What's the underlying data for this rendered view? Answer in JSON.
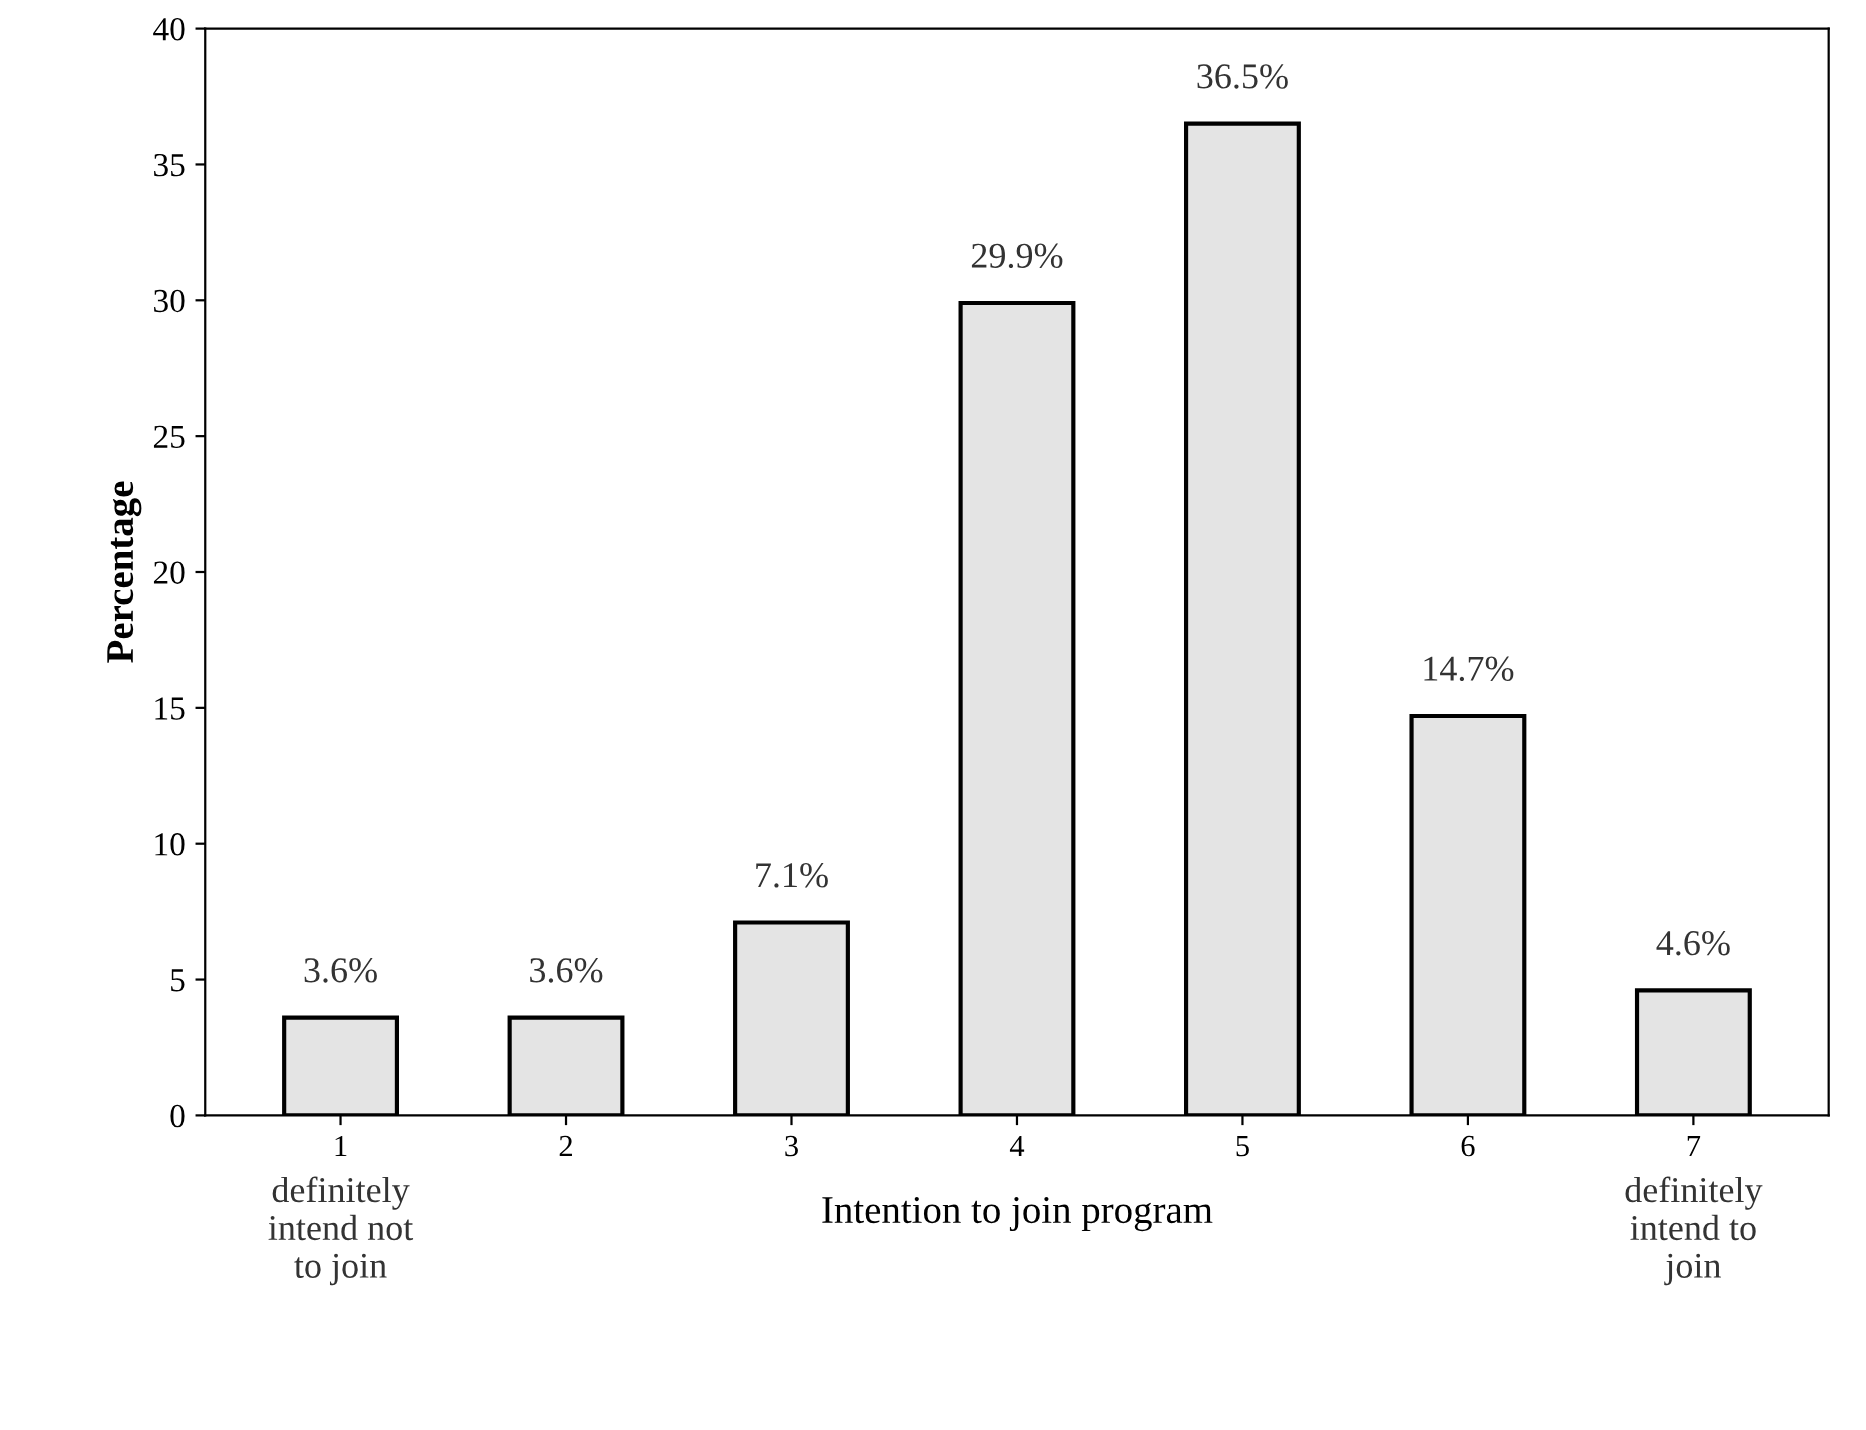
{
  "chart_data": {
    "type": "bar",
    "xlabel": "Intention to join program",
    "ylabel": "Percentage",
    "categories": [
      "1",
      "2",
      "3",
      "4",
      "5",
      "6",
      "7"
    ],
    "values": [
      3.6,
      3.6,
      7.1,
      29.9,
      36.5,
      14.7,
      4.6
    ],
    "value_labels": [
      "3.6%",
      "3.6%",
      "7.1%",
      "29.9%",
      "36.5%",
      "14.7%",
      "4.6%"
    ],
    "color": "#e4e4e4",
    "ylim": [
      0,
      40
    ],
    "yticks": [
      0,
      5,
      10,
      15,
      20,
      25,
      30,
      35,
      40
    ],
    "grid": false,
    "legend": false,
    "annotations": [
      "definitely\nintend not\nto join",
      "definitely\nintend to\njoin"
    ]
  }
}
